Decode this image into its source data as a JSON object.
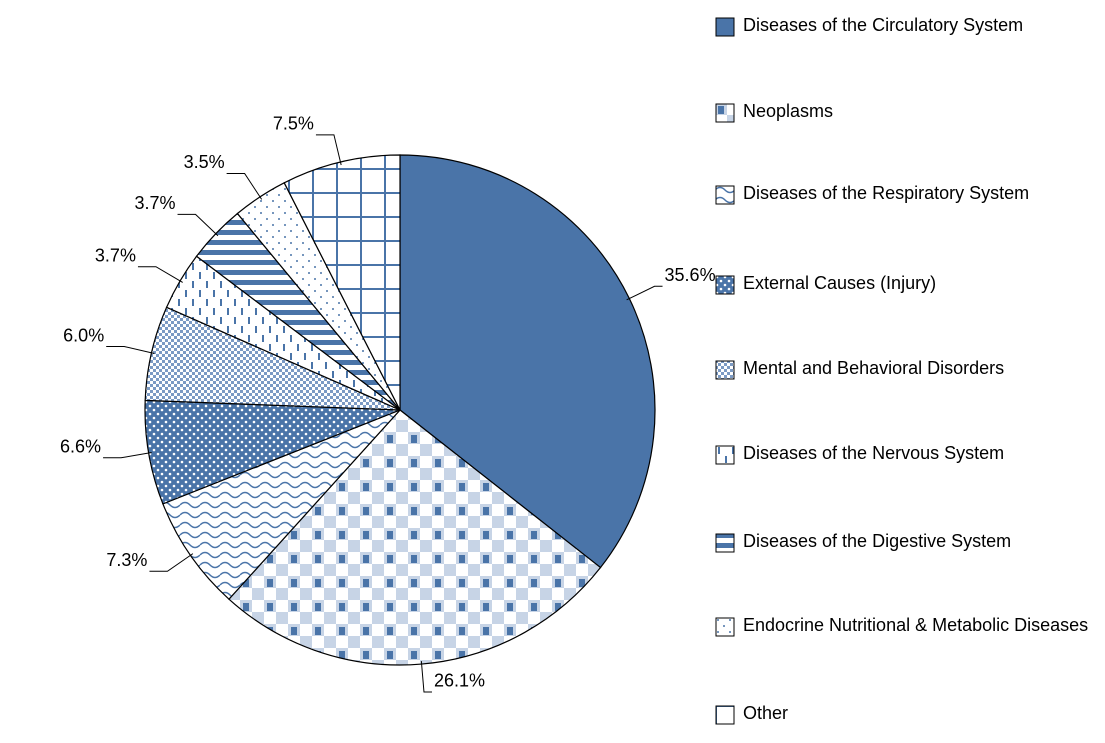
{
  "chart_data": {
    "type": "pie",
    "categories": [
      "Diseases of the Circulatory System",
      "Neoplasms",
      "Diseases of the Respiratory System",
      "External Causes (Injury)",
      "Mental and Behavioral Disorders",
      "Diseases of the Nervous System",
      "Diseases of the Digestive System",
      "Endocrine Nutritional & Metabolic Diseases",
      "Other"
    ],
    "values": [
      35.6,
      26.1,
      7.3,
      6.6,
      6.0,
      3.7,
      3.7,
      3.5,
      7.5
    ],
    "value_labels": [
      "35.6%",
      "26.1%",
      "7.3%",
      "6.6%",
      "6.0%",
      "3.7%",
      "3.7%",
      "3.5%",
      "7.5%"
    ],
    "color": "#4a74a8"
  }
}
